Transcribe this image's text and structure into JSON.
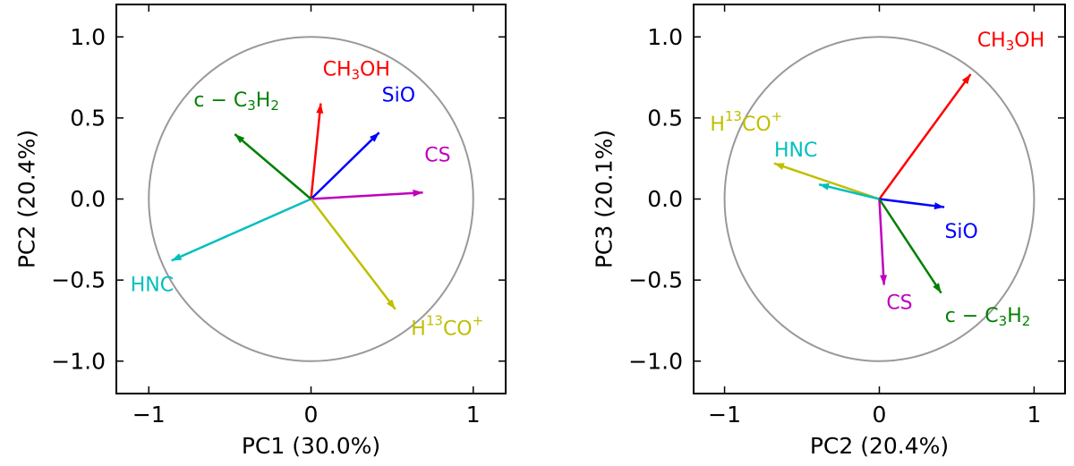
{
  "chart_data": [
    {
      "type": "scatter",
      "subtype": "pca-loading-biplot",
      "xlabel": "PC1 (30.0%)",
      "ylabel": "PC2 (20.4%)",
      "xlim": [
        -1.2,
        1.2
      ],
      "ylim": [
        -1.2,
        1.2
      ],
      "x_ticks": [
        -1,
        0,
        1
      ],
      "x_tick_labels": [
        "−1",
        "0",
        "1"
      ],
      "y_ticks": [
        1.0,
        0.5,
        0.0,
        -0.5,
        -1.0
      ],
      "y_tick_labels": [
        "1.0",
        "0.5",
        "0.0",
        "−0.5",
        "−1.0"
      ],
      "unit_circle": true,
      "vectors": [
        {
          "id": "CH3OH",
          "label_parts": [
            [
              "CH",
              "n"
            ],
            [
              "3",
              "sub"
            ],
            [
              "OH",
              "n"
            ]
          ],
          "color": "#ff0000",
          "x": 0.06,
          "y": 0.59,
          "lx": 0.28,
          "ly": 0.8
        },
        {
          "id": "SiO",
          "label_parts": [
            [
              "SiO",
              "n"
            ]
          ],
          "color": "#0000ff",
          "x": 0.42,
          "y": 0.41,
          "lx": 0.54,
          "ly": 0.64
        },
        {
          "id": "CS",
          "label_parts": [
            [
              "CS",
              "n"
            ]
          ],
          "color": "#bf00bf",
          "x": 0.69,
          "y": 0.04,
          "lx": 0.78,
          "ly": 0.27
        },
        {
          "id": "H13CO+",
          "label_parts": [
            [
              "H",
              "n"
            ],
            [
              "13",
              "sup"
            ],
            [
              "CO",
              "n"
            ],
            [
              "+",
              "sup"
            ]
          ],
          "color": "#bfbf00",
          "x": 0.52,
          "y": -0.68,
          "lx": 0.84,
          "ly": -0.8
        },
        {
          "id": "HNC",
          "label_parts": [
            [
              "HNC",
              "n"
            ]
          ],
          "color": "#00bfbf",
          "x": -0.86,
          "y": -0.38,
          "lx": -0.98,
          "ly": -0.53
        },
        {
          "id": "c-C3H2",
          "label_parts": [
            [
              "c − C",
              "n"
            ],
            [
              "3",
              "sub"
            ],
            [
              "H",
              "n"
            ],
            [
              "2",
              "sub"
            ]
          ],
          "color": "#008000",
          "x": -0.47,
          "y": 0.4,
          "lx": -0.46,
          "ly": 0.61
        }
      ]
    },
    {
      "type": "scatter",
      "subtype": "pca-loading-biplot",
      "xlabel": "PC2 (20.4%)",
      "ylabel": "PC3 (20.1%)",
      "xlim": [
        -1.2,
        1.2
      ],
      "ylim": [
        -1.2,
        1.2
      ],
      "x_ticks": [
        -1,
        0,
        1
      ],
      "x_tick_labels": [
        "−1",
        "0",
        "1"
      ],
      "y_ticks": [
        1.0,
        0.5,
        0.0,
        -0.5,
        -1.0
      ],
      "y_tick_labels": [
        "1.0",
        "0.5",
        "0.0",
        "−0.5",
        "−1.0"
      ],
      "unit_circle": true,
      "vectors": [
        {
          "id": "CH3OH",
          "label_parts": [
            [
              "CH",
              "n"
            ],
            [
              "3",
              "sub"
            ],
            [
              "OH",
              "n"
            ]
          ],
          "color": "#ff0000",
          "x": 0.59,
          "y": 0.77,
          "lx": 0.85,
          "ly": 0.98
        },
        {
          "id": "H13CO+",
          "label_parts": [
            [
              "H",
              "n"
            ],
            [
              "13",
              "sup"
            ],
            [
              "CO",
              "n"
            ],
            [
              "+",
              "sup"
            ]
          ],
          "color": "#bfbf00",
          "x": -0.68,
          "y": 0.22,
          "lx": -0.86,
          "ly": 0.46
        },
        {
          "id": "HNC",
          "label_parts": [
            [
              "HNC",
              "n"
            ]
          ],
          "color": "#00bfbf",
          "x": -0.39,
          "y": 0.09,
          "lx": -0.54,
          "ly": 0.3
        },
        {
          "id": "SiO",
          "label_parts": [
            [
              "SiO",
              "n"
            ]
          ],
          "color": "#0000ff",
          "x": 0.42,
          "y": -0.05,
          "lx": 0.53,
          "ly": -0.2
        },
        {
          "id": "CS",
          "label_parts": [
            [
              "CS",
              "n"
            ]
          ],
          "color": "#bf00bf",
          "x": 0.03,
          "y": -0.53,
          "lx": 0.13,
          "ly": -0.64
        },
        {
          "id": "c-C3H2",
          "label_parts": [
            [
              "c − C",
              "n"
            ],
            [
              "3",
              "sub"
            ],
            [
              "H",
              "n"
            ],
            [
              "2",
              "sub"
            ]
          ],
          "color": "#008000",
          "x": 0.4,
          "y": -0.58,
          "lx": 0.7,
          "ly": -0.72
        }
      ]
    }
  ]
}
